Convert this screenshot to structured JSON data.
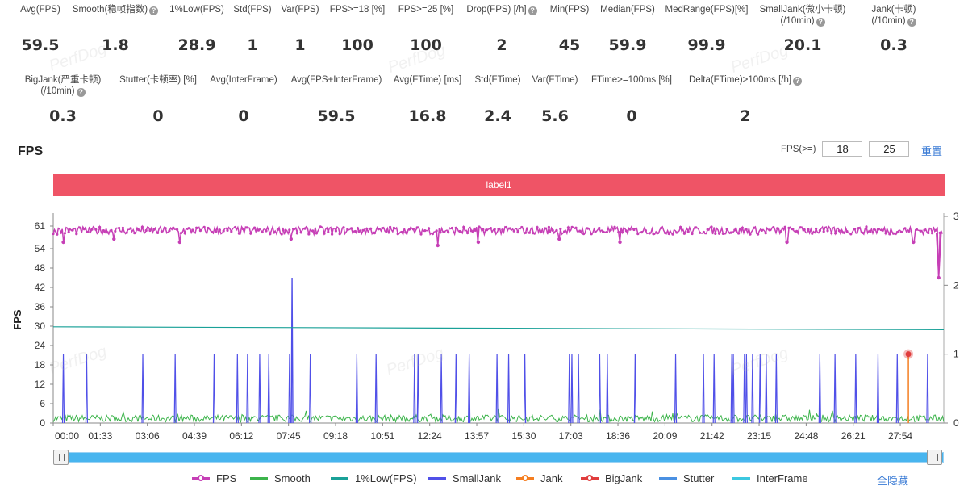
{
  "stats_row1": [
    {
      "label": "Avg(FPS)",
      "value": "59.5",
      "help": false
    },
    {
      "label": "Smooth(稳帧指数)",
      "value": "1.8",
      "help": true
    },
    {
      "label": "1%Low(FPS)",
      "value": "28.9",
      "help": false
    },
    {
      "label": "Std(FPS)",
      "value": "1",
      "help": false
    },
    {
      "label": "Var(FPS)",
      "value": "1",
      "help": false
    },
    {
      "label": "FPS>=18 [%]",
      "value": "100",
      "help": false
    },
    {
      "label": "FPS>=25 [%]",
      "value": "100",
      "help": false
    },
    {
      "label": "Drop(FPS) [/h]",
      "value": "2",
      "help": true
    },
    {
      "label": "Min(FPS)",
      "value": "45",
      "help": false
    },
    {
      "label": "Median(FPS)",
      "value": "59.9",
      "help": false
    },
    {
      "label": "MedRange(FPS)[%]",
      "value": "99.9",
      "help": false
    },
    {
      "label": "SmallJank(微小卡顿)",
      "label2": "(/10min)",
      "value": "20.1",
      "help": true
    },
    {
      "label": "Jank(卡顿)",
      "label2": "(/10min)",
      "value": "0.3",
      "help": true
    }
  ],
  "stats_row2": [
    {
      "label": "BigJank(严重卡顿)",
      "label2": "(/10min)",
      "value": "0.3",
      "help": true
    },
    {
      "label": "Stutter(卡顿率) [%]",
      "value": "0",
      "help": false
    },
    {
      "label": "Avg(InterFrame)",
      "value": "0",
      "help": false
    },
    {
      "label": "Avg(FPS+InterFrame)",
      "value": "59.5",
      "help": false
    },
    {
      "label": "Avg(FTime) [ms]",
      "value": "16.8",
      "help": false
    },
    {
      "label": "Std(FTime)",
      "value": "2.4",
      "help": false
    },
    {
      "label": "Var(FTime)",
      "value": "5.6",
      "help": false
    },
    {
      "label": "FTime>=100ms [%]",
      "value": "0",
      "help": false
    },
    {
      "label": "Delta(FTime)>100ms [/h]",
      "value": "2",
      "help": true
    }
  ],
  "section_title": "FPS",
  "filter": {
    "label": "FPS(>=)",
    "value1": "18",
    "value2": "25",
    "reset": "重置"
  },
  "label_band": "label1",
  "watermark": "PerfDog",
  "legend": {
    "items": [
      {
        "name": "FPS",
        "color": "#c63fb6",
        "marker": true
      },
      {
        "name": "Smooth",
        "color": "#3cb44b",
        "marker": false
      },
      {
        "name": "1%Low(FPS)",
        "color": "#1aa198",
        "marker": false
      },
      {
        "name": "SmallJank",
        "color": "#5050e8",
        "marker": false
      },
      {
        "name": "Jank",
        "color": "#f57e20",
        "marker": true
      },
      {
        "name": "BigJank",
        "color": "#e03c3c",
        "marker": true
      },
      {
        "name": "Stutter",
        "color": "#4a90e2",
        "marker": false
      },
      {
        "name": "InterFrame",
        "color": "#3cc8e0",
        "marker": false
      }
    ],
    "hide_all": "全隐藏"
  },
  "chart_data": {
    "type": "line",
    "ylabel": "FPS",
    "y_ticks": [
      0,
      6,
      12,
      18,
      24,
      30,
      36,
      42,
      48,
      54,
      61
    ],
    "ylim": [
      0,
      64
    ],
    "y2_ticks": [
      0,
      1,
      2,
      3
    ],
    "y2lim": [
      0,
      3
    ],
    "x_ticks": [
      "00:00",
      "01:33",
      "03:06",
      "04:39",
      "06:12",
      "07:45",
      "09:18",
      "10:51",
      "12:24",
      "13:57",
      "15:30",
      "17:03",
      "18:36",
      "20:09",
      "21:42",
      "23:15",
      "24:48",
      "26:21",
      "27:54"
    ],
    "x_tick_seconds": [
      0,
      93,
      186,
      279,
      372,
      465,
      558,
      651,
      744,
      837,
      930,
      1023,
      1116,
      1209,
      1302,
      1395,
      1488,
      1581,
      1674
    ],
    "x_max_seconds": 1760,
    "grid": false,
    "legend_position": "bottom",
    "series": [
      {
        "name": "FPS",
        "baseline": 59.5,
        "min_point": {
          "x": 1750,
          "y": 45
        },
        "dips": [
          {
            "x": 20,
            "y": 56
          },
          {
            "x": 120,
            "y": 57
          },
          {
            "x": 250,
            "y": 56
          },
          {
            "x": 470,
            "y": 57
          },
          {
            "x": 760,
            "y": 55
          },
          {
            "x": 840,
            "y": 56
          },
          {
            "x": 1000,
            "y": 57
          },
          {
            "x": 1120,
            "y": 56
          },
          {
            "x": 1450,
            "y": 56
          },
          {
            "x": 1700,
            "y": 56
          },
          {
            "x": 1750,
            "y": 45
          }
        ]
      },
      {
        "name": "1%Low(FPS)",
        "start": 29.8,
        "end": 28.9
      },
      {
        "name": "Smooth",
        "baseline": 1.8
      },
      {
        "name": "SmallJank",
        "axis": "y2",
        "events_seconds": [
          20,
          66,
          177,
          241,
          318,
          364,
          384,
          408,
          426,
          467,
          508,
          600,
          638,
          714,
          721,
          767,
          796,
          822,
          877,
          900,
          932,
          1020,
          1025,
          1038,
          1080,
          1095,
          1150,
          1230,
          1285,
          1306,
          1341,
          1344,
          1366,
          1370,
          1382,
          1397,
          1409,
          1429,
          1515,
          1545,
          1586,
          1630,
          1668,
          1728
        ],
        "event_value": 1,
        "tall_event": {
          "x": 472,
          "y": 45
        }
      },
      {
        "name": "Jank",
        "axis": "y2",
        "events_seconds": [
          1690
        ],
        "event_value": 1
      },
      {
        "name": "BigJank",
        "axis": "y2",
        "events_seconds": [
          1690
        ],
        "event_value": 1
      }
    ]
  }
}
